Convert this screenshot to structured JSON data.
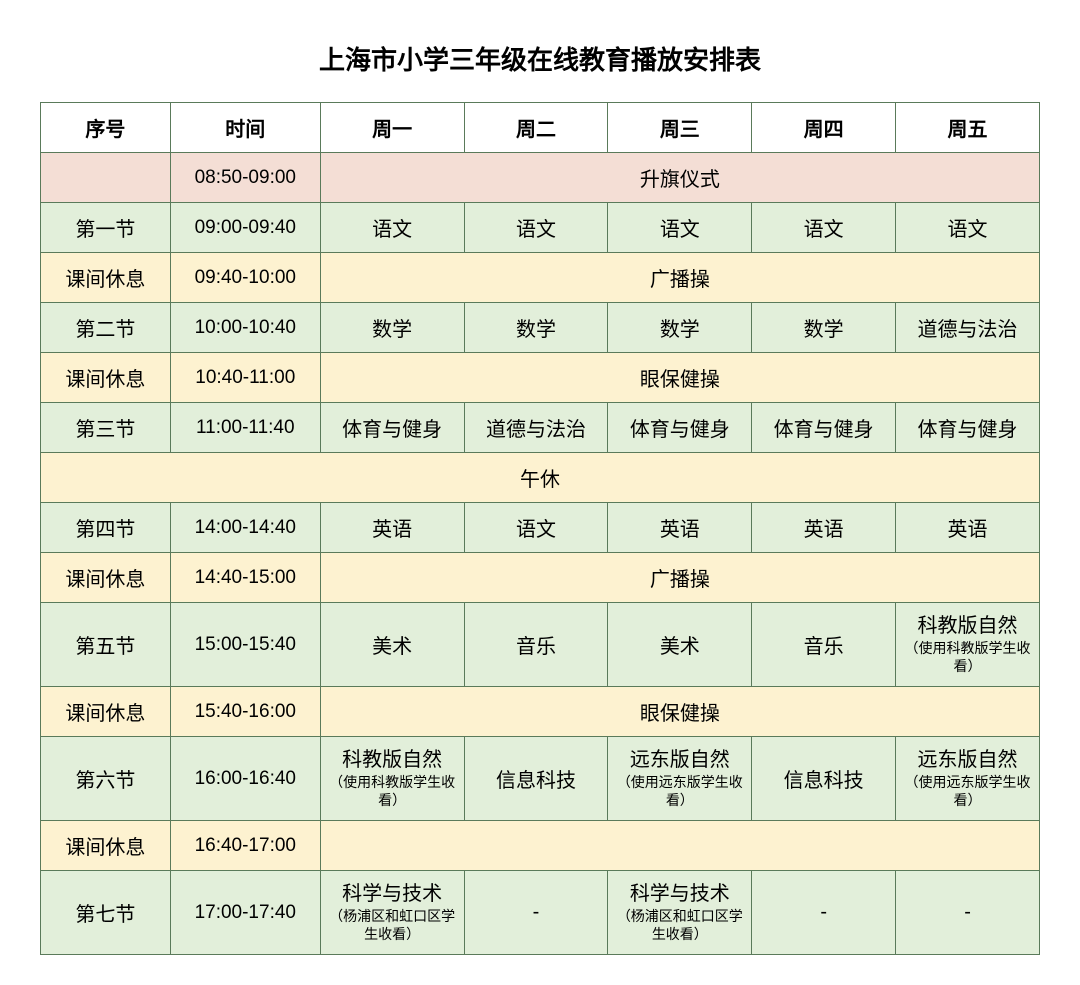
{
  "title": "上海市小学三年级在线教育播放安排表",
  "headers": {
    "seq": "序号",
    "time": "时间",
    "d1": "周一",
    "d2": "周二",
    "d3": "周三",
    "d4": "周四",
    "d5": "周五"
  },
  "rows": {
    "flag": {
      "seq": "",
      "time": "08:50-09:00",
      "merged": "升旗仪式"
    },
    "p1": {
      "seq": "第一节",
      "time": "09:00-09:40",
      "d1": "语文",
      "d2": "语文",
      "d3": "语文",
      "d4": "语文",
      "d5": "语文"
    },
    "break1": {
      "seq": "课间休息",
      "time": "09:40-10:00",
      "merged": "广播操"
    },
    "p2": {
      "seq": "第二节",
      "time": "10:00-10:40",
      "d1": "数学",
      "d2": "数学",
      "d3": "数学",
      "d4": "数学",
      "d5": "道德与法治"
    },
    "break2": {
      "seq": "课间休息",
      "time": "10:40-11:00",
      "merged": "眼保健操"
    },
    "p3": {
      "seq": "第三节",
      "time": "11:00-11:40",
      "d1": "体育与健身",
      "d2": "道德与法治",
      "d3": "体育与健身",
      "d4": "体育与健身",
      "d5": "体育与健身"
    },
    "lunch": {
      "merged_all": "午休"
    },
    "p4": {
      "seq": "第四节",
      "time": "14:00-14:40",
      "d1": "英语",
      "d2": "语文",
      "d3": "英语",
      "d4": "英语",
      "d5": "英语"
    },
    "break3": {
      "seq": "课间休息",
      "time": "14:40-15:00",
      "merged": "广播操"
    },
    "p5": {
      "seq": "第五节",
      "time": "15:00-15:40",
      "d1": "美术",
      "d2": "音乐",
      "d3": "美术",
      "d4": "音乐",
      "d5_main": "科教版自然",
      "d5_sub": "（使用科教版学生收看）"
    },
    "break4": {
      "seq": "课间休息",
      "time": "15:40-16:00",
      "merged": "眼保健操"
    },
    "p6": {
      "seq": "第六节",
      "time": "16:00-16:40",
      "d1_main": "科教版自然",
      "d1_sub": "（使用科教版学生收看）",
      "d2": "信息科技",
      "d3_main": "远东版自然",
      "d3_sub": "（使用远东版学生收看）",
      "d4": "信息科技",
      "d5_main": "远东版自然",
      "d5_sub": "（使用远东版学生收看）"
    },
    "break5": {
      "seq": "课间休息",
      "time": "16:40-17:00",
      "merged": ""
    },
    "p7": {
      "seq": "第七节",
      "time": "17:00-17:40",
      "d1_main": "科学与技术",
      "d1_sub": "（杨浦区和虹口区学生收看）",
      "d2": "-",
      "d3_main": "科学与技术",
      "d3_sub": "（杨浦区和虹口区学生收看）",
      "d4": "-",
      "d5": "-"
    }
  },
  "colors": {
    "green": "#e2efda",
    "cream": "#fdf2d0",
    "pink": "#f4ded5",
    "border": "#5a7a5a"
  }
}
